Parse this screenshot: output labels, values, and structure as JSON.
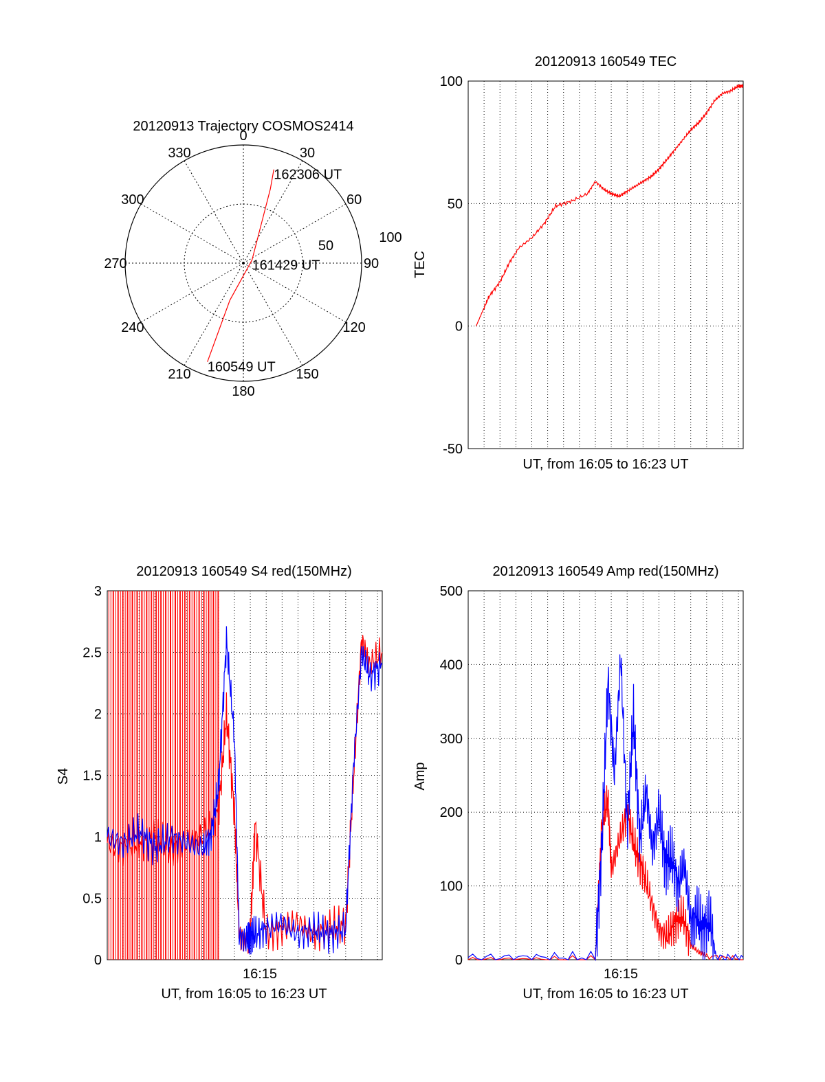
{
  "chart_data": [
    {
      "type": "polar",
      "title": "20120913 Trajectory COSMOS2414",
      "azimuth_labels": [
        "0",
        "30",
        "60",
        "90",
        "120",
        "150",
        "180",
        "210",
        "240",
        "270",
        "300",
        "330"
      ],
      "radial_labels": [
        "50",
        "100"
      ],
      "series": [
        {
          "name": "",
          "color": "#ff0000",
          "points": [
            {
              "az": 200,
              "el": 10,
              "label": "160549 UT"
            },
            {
              "az": 200,
              "el": 60
            },
            {
              "az": 70,
              "el": 83,
              "label": "161429 UT"
            },
            {
              "az": 20,
              "el": 30
            },
            {
              "az": 18,
              "el": 15,
              "label": "162306 UT"
            }
          ]
        }
      ]
    },
    {
      "type": "line",
      "title": "20120913 160549 TEC",
      "xlabel": "UT, from 16:05 to 16:23 UT",
      "ylabel": "TEC",
      "xlim": [
        0,
        17.3
      ],
      "ylim": [
        -50,
        100
      ],
      "yticks": [
        "100",
        "50",
        "0",
        "-50"
      ],
      "grid": true,
      "series": [
        {
          "name": "",
          "color": "#ff0000",
          "x": [
            0.5,
            0.9,
            1.3,
            2.0,
            2.6,
            3.2,
            4.0,
            4.8,
            5.5,
            6.5,
            7.5,
            8.0,
            8.5,
            9.0,
            9.5,
            10.0,
            10.5,
            11.0,
            11.5,
            12.0,
            12.5,
            13.0,
            13.5,
            14.0,
            14.5,
            15.0,
            15.5,
            16.0,
            16.5,
            17.0,
            17.3
          ],
          "y": [
            0,
            6,
            12,
            18,
            26,
            32,
            36,
            42,
            49,
            51,
            54,
            59,
            56,
            54,
            53,
            55,
            57,
            59,
            61,
            64,
            68,
            72,
            76,
            80,
            83,
            87,
            92,
            95,
            96,
            98,
            98
          ]
        }
      ]
    },
    {
      "type": "line",
      "title": "20120913 160549 S4 red(150MHz)",
      "xlabel": "UT, from 16:05 to 16:23 UT",
      "ylabel": "S4",
      "xlim": [
        0,
        17.3
      ],
      "ylim": [
        0,
        3
      ],
      "xticks": [
        "16:15"
      ],
      "yticks": [
        "0",
        "0.5",
        "1",
        "1.5",
        "2",
        "2.5",
        "3"
      ],
      "grid": true,
      "series": [
        {
          "name": "",
          "color": "#ff0000",
          "x": [
            0,
            1,
            2,
            3,
            4,
            5,
            6,
            7,
            7.5,
            8,
            8.3,
            8.8,
            9,
            9.3,
            10,
            11,
            12,
            13,
            14,
            15,
            15.5,
            16,
            16.5,
            17.3
          ],
          "y": [
            0.95,
            0.9,
            0.95,
            1.0,
            0.9,
            0.95,
            1.0,
            1.2,
            2.0,
            1.2,
            0.2,
            0.15,
            0.2,
            1.1,
            0.2,
            0.25,
            0.3,
            0.2,
            0.25,
            0.3,
            1.5,
            2.6,
            2.4,
            2.5
          ]
        },
        {
          "name": "",
          "color": "#0000ff",
          "x": [
            0,
            1,
            2,
            3,
            4,
            5,
            6,
            6.5,
            7,
            7.5,
            8,
            8.3,
            8.8,
            9,
            9.3,
            10,
            11,
            12,
            13,
            14,
            15,
            15.5,
            16,
            16.5,
            17.3
          ],
          "y": [
            1.0,
            0.95,
            1.05,
            0.9,
            1.0,
            0.95,
            0.9,
            1.0,
            1.4,
            2.6,
            1.8,
            0.2,
            0.15,
            0.2,
            0.2,
            0.25,
            0.3,
            0.2,
            0.25,
            0.2,
            0.25,
            1.6,
            2.5,
            2.3,
            2.4
          ]
        }
      ]
    },
    {
      "type": "line",
      "title": "20120913 160549 Amp red(150MHz)",
      "xlabel": "UT, from 16:05 to 16:23 UT",
      "ylabel": "Amp",
      "xlim": [
        0,
        17.3
      ],
      "ylim": [
        0,
        500
      ],
      "xticks": [
        "16:15"
      ],
      "yticks": [
        "0",
        "100",
        "200",
        "300",
        "400",
        "500"
      ],
      "grid": true,
      "series": [
        {
          "name": "",
          "color": "#ff0000",
          "x": [
            0,
            4,
            8.0,
            8.4,
            8.8,
            9.0,
            9.5,
            10,
            10.5,
            11,
            11.5,
            12,
            12.5,
            13,
            13.5,
            14,
            14.5,
            15,
            17.3
          ],
          "y": [
            0,
            0,
            0,
            180,
            220,
            120,
            160,
            200,
            150,
            120,
            80,
            40,
            30,
            50,
            60,
            20,
            10,
            5,
            0
          ]
        },
        {
          "name": "",
          "color": "#0000ff",
          "x": [
            0,
            4,
            8.0,
            8.4,
            8.8,
            9.2,
            9.6,
            10,
            10.4,
            10.8,
            11.2,
            11.6,
            12,
            12.4,
            12.8,
            13.2,
            13.6,
            14,
            14.4,
            14.8,
            15.2,
            15.6,
            17.3
          ],
          "y": [
            3,
            3,
            3,
            150,
            380,
            250,
            410,
            180,
            330,
            160,
            230,
            150,
            200,
            130,
            140,
            100,
            130,
            50,
            60,
            40,
            55,
            3,
            3
          ]
        }
      ]
    }
  ]
}
